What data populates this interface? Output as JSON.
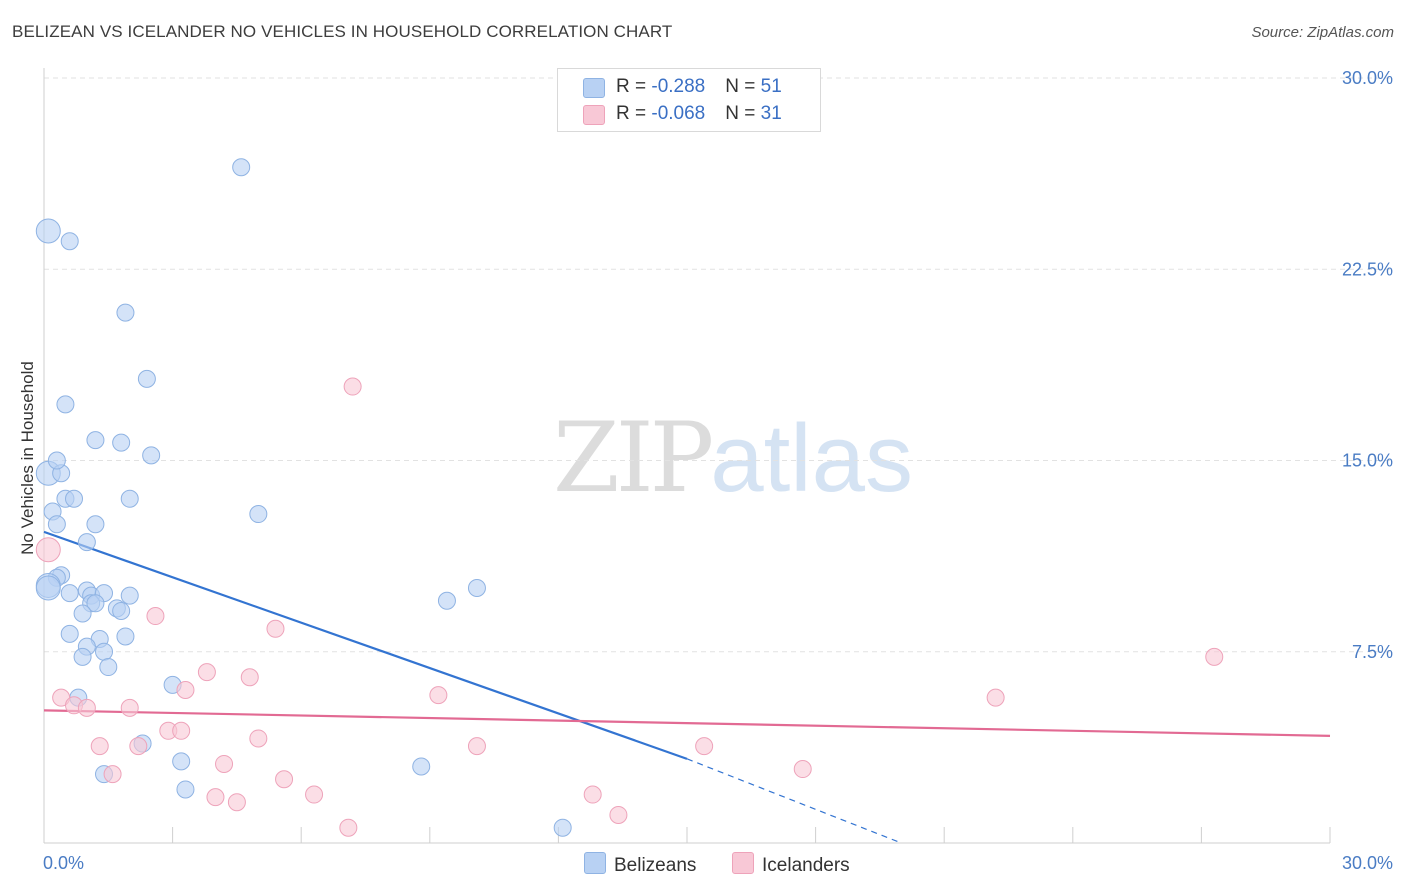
{
  "header": {
    "title": "BELIZEAN VS ICELANDER NO VEHICLES IN HOUSEHOLD CORRELATION CHART",
    "source": "Source: ZipAtlas.com"
  },
  "watermark": {
    "zip": "ZIP",
    "atlas": "atlas"
  },
  "legend": {
    "rows": [
      {
        "r_label": "R = ",
        "r_value": "-0.288",
        "n_label": "N = ",
        "n_value": "51"
      },
      {
        "r_label": "R = ",
        "r_value": "-0.068",
        "n_label": "N = ",
        "n_value": "31"
      }
    ]
  },
  "bottom_legend": {
    "series1": "Belizeans",
    "series2": "Icelanders"
  },
  "colors": {
    "belizeans_fill": "#b8d1f3",
    "belizeans_stroke": "#8fb3e3",
    "belizeans_line": "#3374d1",
    "icelanders_fill": "#f8c8d6",
    "icelanders_stroke": "#eea3ba",
    "icelanders_line": "#e26a93",
    "tick_text": "#4a7cc4",
    "grid": "#e2e2e2"
  },
  "chart_data": {
    "type": "scatter",
    "title": "BELIZEAN VS ICELANDER NO VEHICLES IN HOUSEHOLD CORRELATION CHART",
    "xlabel": "",
    "ylabel": "No Vehicles in Household",
    "xlim": [
      0,
      30
    ],
    "ylim": [
      0,
      30
    ],
    "x_tick_labels": [
      "0.0%",
      "30.0%"
    ],
    "y_ticks": [
      7.5,
      15.0,
      22.5,
      30.0
    ],
    "y_tick_labels": [
      "7.5%",
      "15.0%",
      "22.5%",
      "30.0%"
    ],
    "grid": true,
    "legend_position": "top-center",
    "series": [
      {
        "name": "Belizeans",
        "r": -0.288,
        "n": 51,
        "points": [
          [
            0.1,
            24.0
          ],
          [
            0.6,
            23.6
          ],
          [
            0.1,
            14.5
          ],
          [
            0.4,
            14.5
          ],
          [
            0.3,
            15.0
          ],
          [
            0.5,
            13.5
          ],
          [
            0.7,
            13.5
          ],
          [
            0.2,
            13.0
          ],
          [
            0.3,
            12.5
          ],
          [
            1.2,
            12.5
          ],
          [
            1.2,
            15.8
          ],
          [
            1.8,
            15.7
          ],
          [
            1.9,
            20.8
          ],
          [
            2.4,
            18.2
          ],
          [
            2.5,
            15.2
          ],
          [
            0.5,
            17.2
          ],
          [
            2.0,
            13.5
          ],
          [
            1.0,
            11.8
          ],
          [
            0.4,
            10.5
          ],
          [
            0.3,
            10.4
          ],
          [
            0.1,
            10.1
          ],
          [
            0.6,
            9.8
          ],
          [
            1.0,
            9.9
          ],
          [
            1.1,
            9.7
          ],
          [
            1.4,
            9.8
          ],
          [
            1.1,
            9.4
          ],
          [
            1.2,
            9.4
          ],
          [
            1.7,
            9.2
          ],
          [
            2.0,
            9.7
          ],
          [
            0.9,
            9.0
          ],
          [
            1.8,
            9.1
          ],
          [
            0.6,
            8.2
          ],
          [
            1.3,
            8.0
          ],
          [
            1.9,
            8.1
          ],
          [
            1.0,
            7.7
          ],
          [
            1.4,
            7.5
          ],
          [
            0.9,
            7.3
          ],
          [
            1.5,
            6.9
          ],
          [
            3.0,
            6.2
          ],
          [
            0.8,
            5.7
          ],
          [
            2.3,
            3.9
          ],
          [
            3.2,
            3.2
          ],
          [
            1.4,
            2.7
          ],
          [
            3.3,
            2.1
          ],
          [
            4.6,
            26.5
          ],
          [
            5.0,
            12.9
          ],
          [
            8.8,
            3.0
          ],
          [
            9.4,
            9.5
          ],
          [
            10.1,
            10.0
          ],
          [
            12.1,
            0.6
          ],
          [
            0.1,
            10.0
          ]
        ]
      },
      {
        "name": "Icelanders",
        "r": -0.068,
        "n": 31,
        "points": [
          [
            0.1,
            11.5
          ],
          [
            7.2,
            17.9
          ],
          [
            2.6,
            8.9
          ],
          [
            5.4,
            8.4
          ],
          [
            3.8,
            6.7
          ],
          [
            4.8,
            6.5
          ],
          [
            0.4,
            5.7
          ],
          [
            0.7,
            5.4
          ],
          [
            1.0,
            5.3
          ],
          [
            2.0,
            5.3
          ],
          [
            3.3,
            6.0
          ],
          [
            2.9,
            4.4
          ],
          [
            3.2,
            4.4
          ],
          [
            2.2,
            3.8
          ],
          [
            1.3,
            3.8
          ],
          [
            5.0,
            4.1
          ],
          [
            4.2,
            3.1
          ],
          [
            1.6,
            2.7
          ],
          [
            4.0,
            1.8
          ],
          [
            4.5,
            1.6
          ],
          [
            5.6,
            2.5
          ],
          [
            6.3,
            1.9
          ],
          [
            7.1,
            0.6
          ],
          [
            9.2,
            5.8
          ],
          [
            10.1,
            3.8
          ],
          [
            12.8,
            1.9
          ],
          [
            13.4,
            1.1
          ],
          [
            15.4,
            3.8
          ],
          [
            17.7,
            2.9
          ],
          [
            22.2,
            5.7
          ],
          [
            27.3,
            7.3
          ]
        ]
      }
    ],
    "trend_lines": [
      {
        "series": "Belizeans",
        "x": [
          0.0,
          15.0
        ],
        "y": [
          12.2,
          3.3
        ],
        "dashed_to": [
          20.0,
          0.0
        ]
      },
      {
        "series": "Icelanders",
        "x": [
          0.0,
          30.0
        ],
        "y": [
          5.2,
          4.2
        ]
      }
    ]
  }
}
